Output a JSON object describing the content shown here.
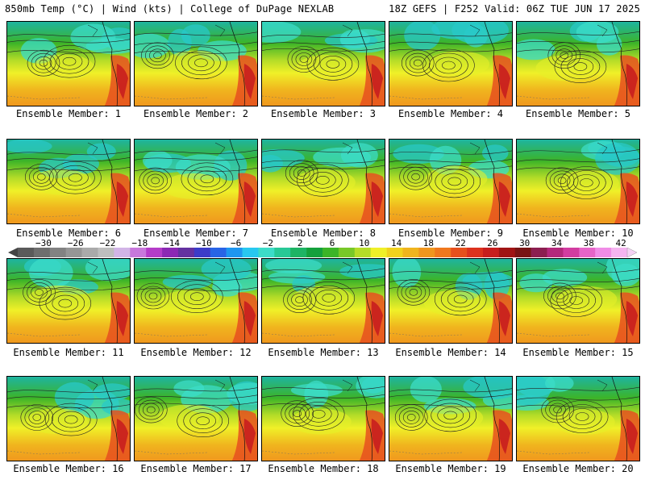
{
  "header": {
    "left": "850mb Temp (°C) | Wind (kts) | College of DuPage NEXLAB",
    "right": "18Z GEFS | F252 Valid: 06Z TUE JUN 17 2025"
  },
  "colorbar": {
    "ticks": [
      "-30",
      "-26",
      "-22",
      "-18",
      "-14",
      "-10",
      "-6",
      "-2",
      "2",
      "6",
      "10",
      "14",
      "18",
      "22",
      "26",
      "30",
      "34",
      "38",
      "42"
    ],
    "colors": [
      "#5a5a5a",
      "#6e6e6e",
      "#828282",
      "#969696",
      "#aaaaaa",
      "#bebebe",
      "#d2b4e6",
      "#c878dc",
      "#b43cc8",
      "#8c28b4",
      "#6432a0",
      "#3c3cc8",
      "#2864e6",
      "#1e96f0",
      "#28c8f0",
      "#3cdcc8",
      "#28c896",
      "#1eb464",
      "#14a03c",
      "#3cb428",
      "#78c828",
      "#b4dc28",
      "#f0f028",
      "#f0d21e",
      "#f0b41e",
      "#f0961e",
      "#f0781e",
      "#e6501e",
      "#dc321e",
      "#c81e1e",
      "#a01414",
      "#781414",
      "#8c1e50",
      "#b4287c",
      "#d23ca0",
      "#e664c8",
      "#f08ce6",
      "#f5b4f0"
    ]
  },
  "members": [
    {
      "label": "Ensemble Member: 1"
    },
    {
      "label": "Ensemble Member: 2"
    },
    {
      "label": "Ensemble Member: 3"
    },
    {
      "label": "Ensemble Member: 4"
    },
    {
      "label": "Ensemble Member: 5"
    },
    {
      "label": "Ensemble Member: 6"
    },
    {
      "label": "Ensemble Member: 7"
    },
    {
      "label": "Ensemble Member: 8"
    },
    {
      "label": "Ensemble Member: 9"
    },
    {
      "label": "Ensemble Member: 10"
    },
    {
      "label": "Ensemble Member: 11"
    },
    {
      "label": "Ensemble Member: 12"
    },
    {
      "label": "Ensemble Member: 13"
    },
    {
      "label": "Ensemble Member: 14"
    },
    {
      "label": "Ensemble Member: 15"
    },
    {
      "label": "Ensemble Member: 16"
    },
    {
      "label": "Ensemble Member: 17"
    },
    {
      "label": "Ensemble Member: 18"
    },
    {
      "label": "Ensemble Member: 19"
    },
    {
      "label": "Ensemble Member: 20"
    }
  ]
}
